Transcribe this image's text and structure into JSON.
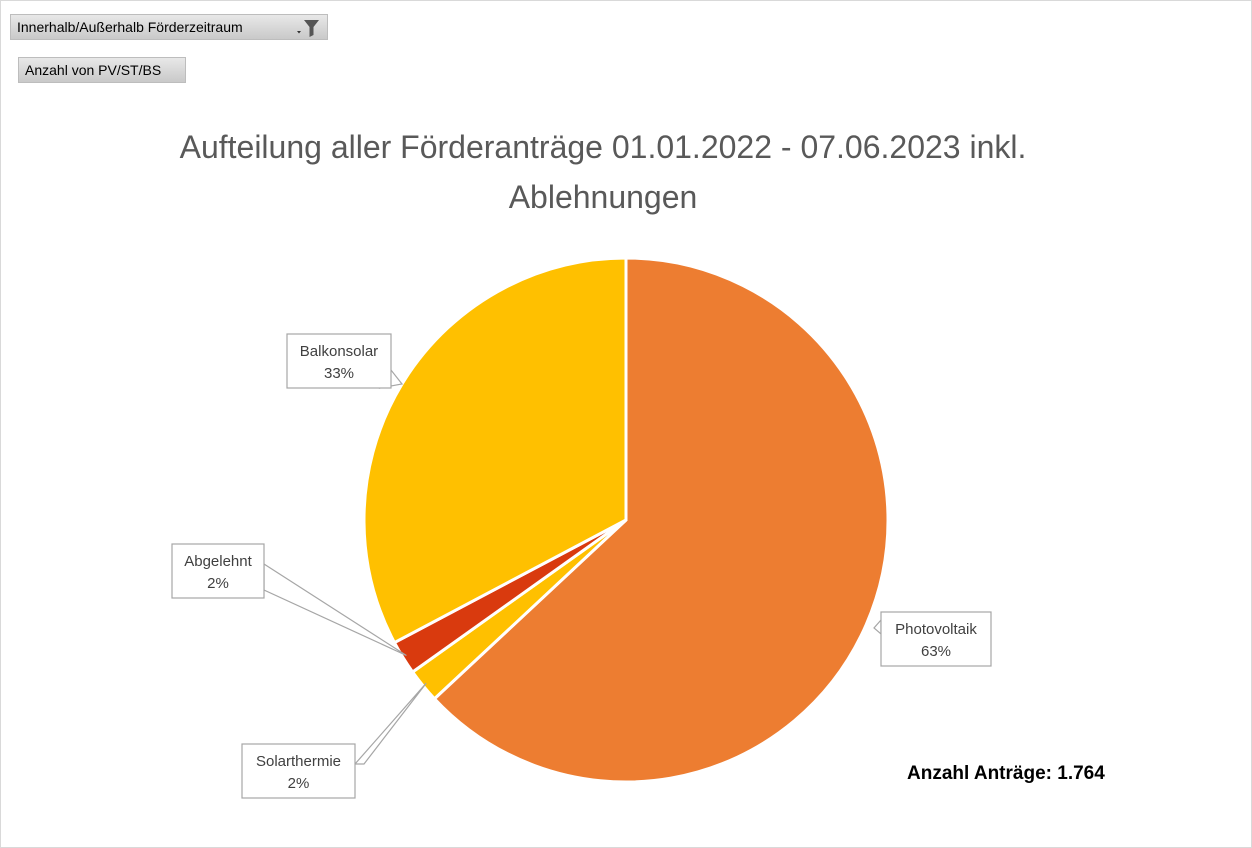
{
  "pivot": {
    "filter_label": "Innerhalb/Außerhalb Förderzeitraum",
    "field_label": "Anzahl von PV/ST/BS"
  },
  "chart_data": {
    "type": "pie",
    "title": "Aufteilung aller Förderanträge 01.01.2022 - 07.06.2023 inkl. Ablehnungen",
    "slices": [
      {
        "name": "Photovoltaik",
        "label": "Photovoltaik",
        "percent_label": "63%",
        "value": 0.6305,
        "color": "#ED7D31"
      },
      {
        "name": "Solarthermie",
        "label": "Solarthermie",
        "percent_label": "2%",
        "value": 0.021,
        "color": "#FFC000"
      },
      {
        "name": "Abgelehnt",
        "label": "Abgelehnt",
        "percent_label": "2%",
        "value": 0.021,
        "color": "#D93A0E"
      },
      {
        "name": "Balkonsolar",
        "label": "Balkonsolar",
        "percent_label": "33%",
        "value": 0.3275,
        "color": "#FFC000"
      }
    ],
    "start_angle_deg": 0,
    "direction": "clockwise",
    "legend": "none",
    "annotation": "Anzahl Anträge: 1.764"
  }
}
